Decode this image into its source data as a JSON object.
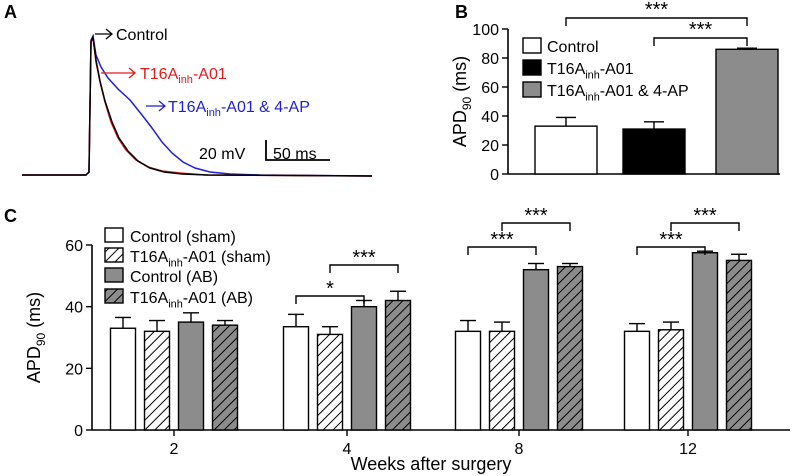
{
  "panel_labels": {
    "a": "A",
    "b": "B",
    "c": "C"
  },
  "chart_data": [
    {
      "panel": "A",
      "type": "line",
      "title": "",
      "xlabel": "",
      "ylabel": "",
      "traces": [
        {
          "name": "Control",
          "color": "#000000"
        },
        {
          "name": "T16Ainh-A01",
          "color": "#e31a1c"
        },
        {
          "name": "T16Ainh-A01 & 4-AP",
          "color": "#1f1fd6"
        }
      ],
      "labels": {
        "control": "Control",
        "t16_main": "T16A",
        "t16_sub": "inh",
        "t16_rest": "-A01",
        "blue_main": "T16A",
        "blue_sub": "inh",
        "blue_rest": "-A01 & 4-AP"
      },
      "scalebar": {
        "voltage": "20 mV",
        "time": "50 ms"
      }
    },
    {
      "panel": "B",
      "type": "bar",
      "categories": [
        "Control",
        "T16Ainh-A01",
        "T16Ainh-A01 & 4-AP"
      ],
      "values": [
        33,
        31,
        86
      ],
      "errors": [
        6,
        5,
        0.8
      ],
      "colors": [
        "#ffffff",
        "#000000",
        "#8c8c8c"
      ],
      "ylabel_main": "APD",
      "ylabel_sub": "90",
      "ylabel_unit": " (ms)",
      "ylim": [
        0,
        100
      ],
      "yticks": [
        "0",
        "20",
        "40",
        "60",
        "80",
        "100"
      ],
      "legend": [
        {
          "main": "Control",
          "sub": "",
          "rest": ""
        },
        {
          "main": "T16A",
          "sub": "inh",
          "rest": "-A01"
        },
        {
          "main": "T16A",
          "sub": "inh",
          "rest": "-A01 & 4-AP"
        }
      ],
      "significance": [
        {
          "from": 0,
          "to": 2,
          "label": "***"
        },
        {
          "from": 1,
          "to": 2,
          "label": "***"
        }
      ]
    },
    {
      "panel": "C",
      "type": "bar",
      "categories": [
        "2",
        "4",
        "8",
        "12"
      ],
      "xlabel": "Weeks after surgery",
      "ylabel_main": "APD",
      "ylabel_sub": "90",
      "ylabel_unit": " (ms)",
      "ylim": [
        0,
        60
      ],
      "yticks": [
        "0",
        "20",
        "40",
        "60"
      ],
      "series": [
        {
          "name": "Control (sham)",
          "fill": "white",
          "values": [
            33,
            33.5,
            32,
            32
          ],
          "errors": [
            3.5,
            4,
            3.5,
            2.5
          ]
        },
        {
          "name": "T16Ainh-A01 (sham)",
          "fill": "hatch-white",
          "values": [
            32,
            31,
            32,
            32.5
          ],
          "errors": [
            3.5,
            2.5,
            3,
            2.5
          ]
        },
        {
          "name": "Control (AB)",
          "fill": "gray",
          "values": [
            35,
            40,
            52,
            57.5
          ],
          "errors": [
            3,
            2,
            2,
            0.5
          ]
        },
        {
          "name": "T16Ainh-A01 (AB)",
          "fill": "hatch-gray",
          "values": [
            34,
            42,
            53,
            55
          ],
          "errors": [
            1.5,
            3,
            1,
            2
          ]
        }
      ],
      "legend": [
        {
          "main": "Control (sham)",
          "sub": "",
          "rest": ""
        },
        {
          "main": "T16A",
          "sub": "inh",
          "rest": "-A01 (sham)"
        },
        {
          "main": "Control (AB)",
          "sub": "",
          "rest": ""
        },
        {
          "main": "T16A",
          "sub": "inh",
          "rest": "-A01 (AB)"
        }
      ],
      "significance": [
        {
          "group": 1,
          "from": 0,
          "to": 2,
          "label": "*"
        },
        {
          "group": 1,
          "from": 1,
          "to": 3,
          "label": "***"
        },
        {
          "group": 2,
          "from": 0,
          "to": 2,
          "label": "***"
        },
        {
          "group": 2,
          "from": 1,
          "to": 3,
          "label": "***"
        },
        {
          "group": 3,
          "from": 0,
          "to": 2,
          "label": "***"
        },
        {
          "group": 3,
          "from": 1,
          "to": 3,
          "label": "***"
        }
      ]
    }
  ]
}
